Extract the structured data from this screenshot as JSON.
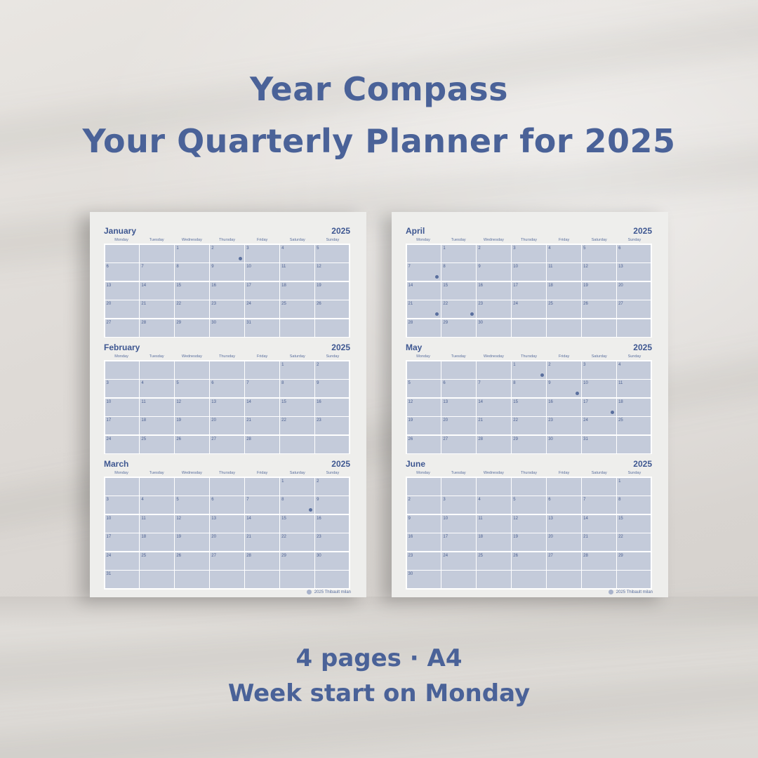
{
  "headline": {
    "line1": "Year Compass",
    "line2": "Your Quarterly Planner for 2025"
  },
  "footer": {
    "line1": "4 pages · A4",
    "line2": "Week start on Monday"
  },
  "colors": {
    "brand": "#4a6298",
    "cell": "#c4cbda",
    "paper": "#eeeeec"
  },
  "weekdays": [
    "Monday",
    "Tuesday",
    "Wednesday",
    "Thursday",
    "Friday",
    "Saturday",
    "Sunday"
  ],
  "credit": "2025 Thibault milan",
  "sheets": [
    {
      "months": [
        {
          "name": "January",
          "year": "2025",
          "first_weekday_index": 2,
          "days": 31,
          "moon_days": [
            2
          ]
        },
        {
          "name": "February",
          "year": "2025",
          "first_weekday_index": 5,
          "days": 28,
          "moon_days": []
        },
        {
          "name": "March",
          "year": "2025",
          "first_weekday_index": 5,
          "days": 31,
          "moon_days": [
            8
          ]
        }
      ]
    },
    {
      "months": [
        {
          "name": "April",
          "year": "2025",
          "first_weekday_index": 1,
          "days": 30,
          "moon_days": [
            7,
            21,
            22
          ]
        },
        {
          "name": "May",
          "year": "2025",
          "first_weekday_index": 3,
          "days": 31,
          "moon_days": [
            1,
            9,
            17
          ]
        },
        {
          "name": "June",
          "year": "2025",
          "first_weekday_index": 6,
          "days": 30,
          "moon_days": []
        }
      ]
    }
  ]
}
